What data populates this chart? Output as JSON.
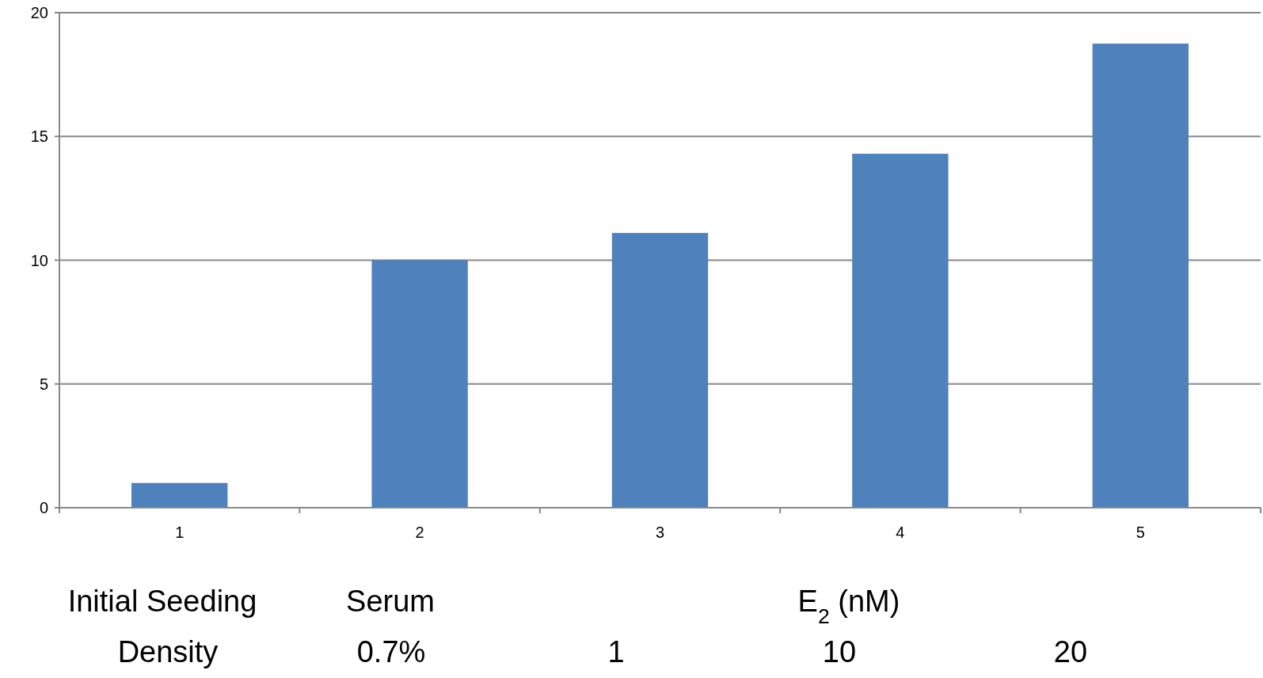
{
  "chart_data": {
    "type": "bar",
    "categories": [
      "1",
      "2",
      "3",
      "4",
      "5"
    ],
    "values": [
      1,
      10,
      11.1,
      14.3,
      18.75
    ],
    "color": "#4f81bd",
    "ylim": [
      0,
      20
    ],
    "yticks": [
      0,
      5,
      10,
      15,
      20
    ],
    "grid": "y",
    "annotations": [
      "Initial Seeding",
      "Density",
      "Serum",
      "0.7%",
      "E$_{2}$ (nM)",
      "1",
      "10",
      "20"
    ]
  }
}
